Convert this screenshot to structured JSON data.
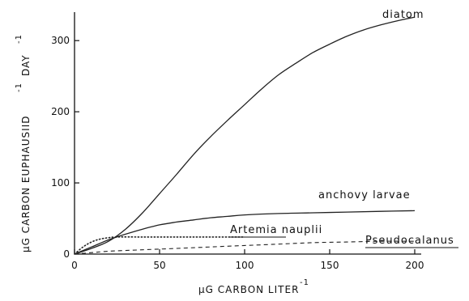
{
  "chart_data": {
    "type": "line",
    "xlabel": "µG CARBON LITER",
    "xlabel_sup": "-1",
    "ylabel_main": "µG CARBON EUPHAUSIID",
    "ylabel_sup1": "-1",
    "ylabel_day": "DAY",
    "ylabel_sup2": "-1",
    "xlim": [
      0,
      200
    ],
    "ylim": [
      0,
      340
    ],
    "x_ticks": [
      0,
      50,
      100,
      150,
      200
    ],
    "y_ticks": [
      0,
      100,
      200,
      300
    ],
    "grid": false,
    "legend": "labels-on-curves",
    "series": [
      {
        "name": "diatom",
        "style": "solid",
        "x": [
          0,
          10,
          20,
          30,
          40,
          50,
          60,
          70,
          80,
          90,
          100,
          110,
          120,
          130,
          140,
          150,
          160,
          170,
          180,
          190,
          200
        ],
        "y": [
          0,
          8,
          18,
          35,
          58,
          85,
          112,
          140,
          165,
          188,
          210,
          232,
          252,
          268,
          283,
          295,
          306,
          315,
          322,
          328,
          333
        ]
      },
      {
        "name": "anchovy larvae",
        "style": "solid",
        "x": [
          0,
          10,
          20,
          30,
          40,
          50,
          60,
          70,
          80,
          90,
          100,
          120,
          140,
          160,
          180,
          200
        ],
        "y": [
          0,
          10,
          20,
          28,
          35,
          41,
          45,
          48,
          51,
          53,
          55,
          57,
          58,
          59,
          60,
          61
        ]
      },
      {
        "name": "Artemia nauplii",
        "style": "dotted",
        "x": [
          0,
          5,
          10,
          15,
          20,
          25,
          40,
          60,
          80,
          100
        ],
        "y": [
          0,
          10,
          17,
          21,
          23,
          24,
          24,
          24,
          24,
          24
        ]
      },
      {
        "name": "Pseudocalanus",
        "style": "dashed",
        "x": [
          0,
          10,
          20,
          40,
          60,
          80,
          100,
          120,
          140,
          160,
          180,
          200
        ],
        "y": [
          0,
          2,
          4,
          6,
          8,
          10,
          12,
          14,
          16,
          17,
          18,
          18
        ]
      }
    ]
  }
}
